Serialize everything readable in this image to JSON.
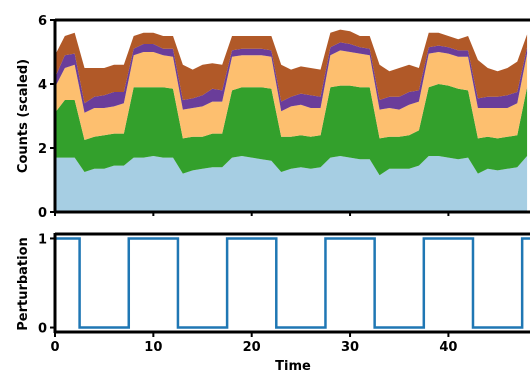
{
  "chart_data": [
    {
      "type": "area",
      "stacked": true,
      "xlabel": "",
      "ylabel": "Counts (scaled)",
      "xlim": [
        0,
        48.5
      ],
      "ylim": [
        0,
        6
      ],
      "yticks": [
        0,
        2,
        4,
        6
      ],
      "yticklabels": [
        "0",
        "2",
        "4",
        "6"
      ],
      "xticks": [
        0,
        10,
        20,
        30,
        40
      ],
      "grid": false,
      "legend": "none",
      "x": [
        0,
        1,
        2,
        3,
        4,
        5,
        6,
        7,
        8,
        9,
        10,
        11,
        12,
        13,
        14,
        15,
        16,
        17,
        18,
        19,
        20,
        21,
        22,
        23,
        24,
        25,
        26,
        27,
        28,
        29,
        30,
        31,
        32,
        33,
        34,
        35,
        36,
        37,
        38,
        39,
        40,
        41,
        42,
        43,
        44,
        45,
        46,
        47,
        48
      ],
      "series": [
        {
          "color": "#a6cee3",
          "values": [
            1.7,
            1.7,
            1.7,
            1.25,
            1.35,
            1.35,
            1.45,
            1.45,
            1.7,
            1.7,
            1.75,
            1.7,
            1.7,
            1.2,
            1.3,
            1.35,
            1.4,
            1.4,
            1.7,
            1.75,
            1.7,
            1.65,
            1.6,
            1.25,
            1.35,
            1.4,
            1.35,
            1.4,
            1.7,
            1.75,
            1.7,
            1.65,
            1.65,
            1.15,
            1.35,
            1.35,
            1.35,
            1.45,
            1.75,
            1.75,
            1.7,
            1.65,
            1.7,
            1.2,
            1.35,
            1.3,
            1.35,
            1.4,
            1.75
          ]
        },
        {
          "color": "#33a02c",
          "values": [
            1.4,
            1.8,
            1.8,
            1.0,
            1.0,
            1.05,
            1.0,
            1.0,
            2.2,
            2.2,
            2.15,
            2.2,
            2.15,
            1.1,
            1.05,
            1.0,
            1.05,
            1.05,
            2.1,
            2.15,
            2.2,
            2.25,
            2.25,
            1.1,
            1.0,
            1.0,
            1.0,
            1.0,
            2.2,
            2.2,
            2.25,
            2.25,
            2.25,
            1.15,
            1.0,
            1.0,
            1.05,
            1.1,
            2.15,
            2.25,
            2.25,
            2.2,
            2.1,
            1.1,
            1.0,
            1.0,
            1.0,
            1.0,
            2.15
          ]
        },
        {
          "color": "#fdbf6f",
          "values": [
            0.8,
            1.0,
            1.1,
            0.85,
            0.9,
            0.85,
            0.85,
            0.95,
            1.0,
            1.1,
            1.1,
            1.0,
            1.0,
            0.9,
            0.9,
            0.95,
            1.0,
            1.0,
            1.05,
            1.0,
            1.0,
            1.0,
            1.0,
            0.8,
            0.95,
            0.95,
            0.9,
            0.85,
            1.0,
            1.1,
            1.05,
            1.05,
            1.0,
            0.9,
            0.9,
            0.85,
            0.95,
            0.9,
            1.05,
            1.0,
            1.0,
            1.0,
            1.05,
            0.95,
            0.9,
            0.95,
            0.9,
            1.0,
            1.05
          ]
        },
        {
          "color": "#6a3d9a",
          "values": [
            0.3,
            0.4,
            0.35,
            0.3,
            0.35,
            0.4,
            0.45,
            0.35,
            0.2,
            0.25,
            0.25,
            0.2,
            0.25,
            0.3,
            0.3,
            0.35,
            0.4,
            0.35,
            0.2,
            0.2,
            0.2,
            0.2,
            0.2,
            0.3,
            0.3,
            0.35,
            0.4,
            0.35,
            0.25,
            0.25,
            0.25,
            0.2,
            0.2,
            0.3,
            0.35,
            0.4,
            0.4,
            0.35,
            0.2,
            0.2,
            0.2,
            0.2,
            0.2,
            0.3,
            0.35,
            0.35,
            0.4,
            0.35,
            0.2
          ]
        },
        {
          "color": "#b15928",
          "values": [
            0.7,
            0.6,
            0.65,
            1.1,
            0.9,
            0.85,
            0.85,
            0.85,
            0.4,
            0.35,
            0.35,
            0.4,
            0.4,
            1.1,
            0.9,
            0.95,
            0.8,
            0.8,
            0.45,
            0.4,
            0.4,
            0.4,
            0.45,
            1.15,
            0.85,
            0.85,
            0.85,
            0.85,
            0.45,
            0.4,
            0.4,
            0.35,
            0.4,
            1.1,
            0.8,
            0.9,
            0.85,
            0.7,
            0.45,
            0.4,
            0.35,
            0.35,
            0.45,
            1.2,
            0.9,
            0.8,
            0.85,
            0.95,
            0.4
          ]
        }
      ]
    },
    {
      "type": "line",
      "xlabel": "Time",
      "ylabel": "Perturbation",
      "xlim": [
        0,
        48.5
      ],
      "ylim": [
        -0.05,
        1.05
      ],
      "xticks": [
        0,
        10,
        20,
        30,
        40
      ],
      "xticklabels": [
        "0",
        "10",
        "20",
        "30",
        "40"
      ],
      "yticks": [
        0,
        1
      ],
      "yticklabels": [
        "0",
        "1"
      ],
      "grid": false,
      "legend": "none",
      "series": [
        {
          "color": "#1f77b4",
          "x": [
            0,
            2.5,
            2.5,
            7.5,
            7.5,
            12.5,
            12.5,
            17.5,
            17.5,
            22.5,
            22.5,
            27.5,
            27.5,
            32.5,
            32.5,
            37.5,
            37.5,
            42.5,
            42.5,
            47.5,
            47.5,
            48.5
          ],
          "y": [
            1,
            1,
            0,
            0,
            1,
            1,
            0,
            0,
            1,
            1,
            0,
            0,
            1,
            1,
            0,
            0,
            1,
            1,
            0,
            0,
            1,
            1
          ]
        }
      ]
    }
  ]
}
